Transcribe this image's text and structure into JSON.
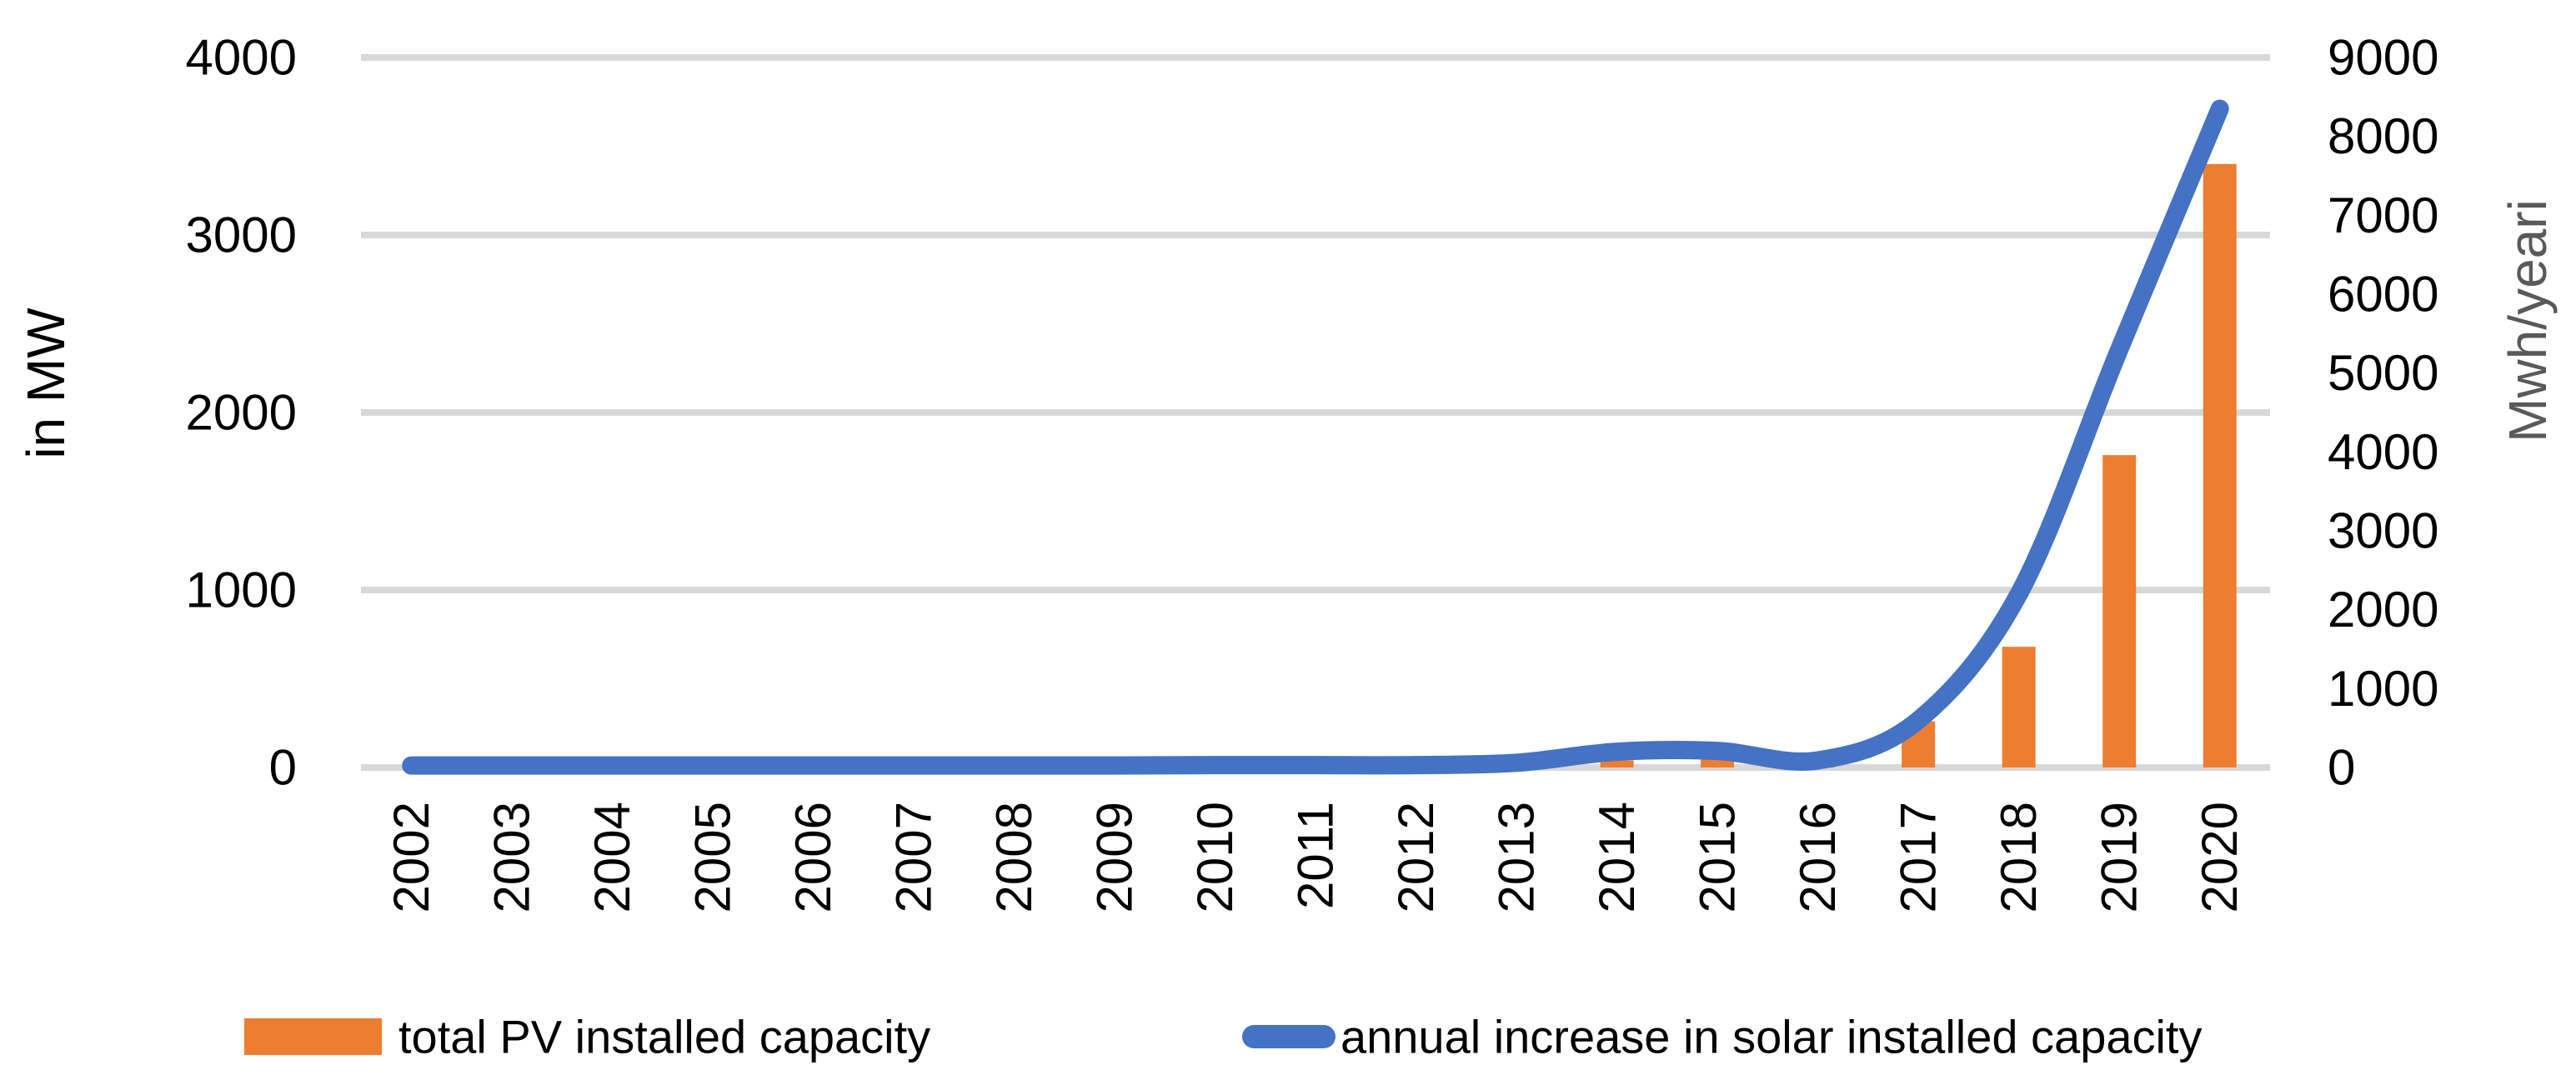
{
  "figure": {
    "legend": [
      {
        "label": "total PV installed capacity",
        "swatch": "bar-swatch",
        "color": "#ED7D31"
      },
      {
        "label": "annual increase in solar installed capacity",
        "swatch": "line-swatch",
        "color": "#4472C4"
      }
    ]
  },
  "chart_data": {
    "type": "combo-bar-line",
    "categories": [
      "2002",
      "2003",
      "2004",
      "2005",
      "2006",
      "2007",
      "2008",
      "2009",
      "2010",
      "2011",
      "2012",
      "2013",
      "2014",
      "2015",
      "2016",
      "2017",
      "2018",
      "2019",
      "2020"
    ],
    "series": [
      {
        "name": "total PV installed capacity",
        "type": "bar",
        "axis": "left",
        "color": "#ED7D31",
        "values": [
          0,
          0,
          0,
          0,
          0,
          0,
          0,
          0,
          0,
          0,
          0,
          0,
          40,
          45,
          60,
          260,
          680,
          1760,
          3400
        ]
      },
      {
        "name": "annual increase in solar installed capacity",
        "type": "line",
        "axis": "right",
        "color": "#4472C4",
        "values": [
          25,
          25,
          25,
          25,
          25,
          25,
          25,
          25,
          30,
          30,
          30,
          60,
          200,
          210,
          90,
          600,
          2200,
          5300,
          8350
        ]
      }
    ],
    "left_axis": {
      "title": "in MW",
      "min": 0,
      "max": 4000,
      "ticks": [
        "0",
        "1000",
        "2000",
        "3000",
        "4000"
      ]
    },
    "right_axis": {
      "title": "Mwh/yeari",
      "min": 0,
      "max": 9000,
      "ticks": [
        "0",
        "1000",
        "2000",
        "3000",
        "4000",
        "5000",
        "6000",
        "7000",
        "8000",
        "9000"
      ]
    },
    "gridlines": {
      "on": true,
      "color": "#D8D8D8"
    },
    "legend_position": "bottom"
  }
}
